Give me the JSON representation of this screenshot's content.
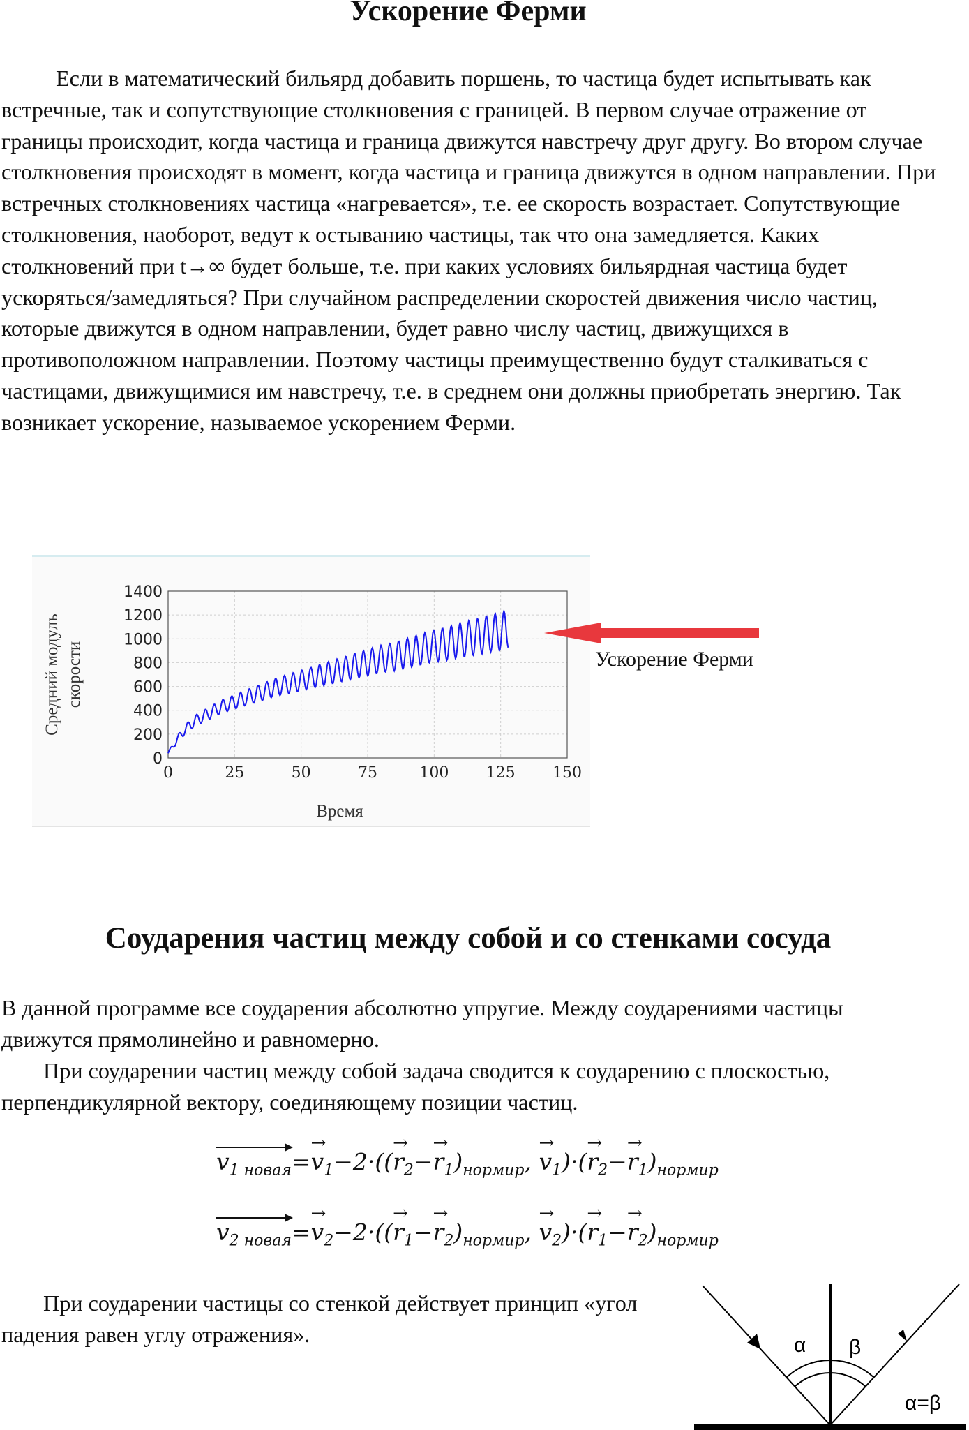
{
  "heading_fermi": "Ускорение Ферми",
  "paragraph_fermi": "Если в математический бильярд добавить поршень, то частица будет испытывать как встречные, так и сопутствующие столкновения с границей. В первом случае отражение от границы происходит, когда частица и граница движутся навстречу друг другу. Во втором случае столкновения происходят в момент, когда частица и граница движутся в одном направлении. При встречных столкновениях частица «нагревается», т.е. ее скорость возрастает. Сопутствующие столкновения, наоборот, ведут к остыванию частицы, так что она замедляется. Каких столкновений при t→∞ будет больше, т.е. при каких условиях бильярдная частица будет ускоряться/замедляться? При случайном распределении скоростей движения число частиц, которые движутся в одном направлении, будет равно числу частиц, движущихся в противоположном направлении. Поэтому частицы преимущественно будут сталкиваться с частицами, движущимися им навстречу, т.е. в среднем они должны приобретать энергию. Так возникает ускорение, называемое ускорением Ферми.",
  "chart_data": {
    "type": "line",
    "xlabel": "Время",
    "ylabel_lines": [
      "Средний модуль",
      "скорости"
    ],
    "xlim": [
      0,
      150
    ],
    "ylim": [
      0,
      1400
    ],
    "x_ticks": [
      "0",
      "25",
      "50",
      "75",
      "100",
      "125",
      "150"
    ],
    "y_ticks": [
      "0",
      "200",
      "400",
      "600",
      "800",
      "1000",
      "1200",
      "1400"
    ],
    "grid": true,
    "series": [
      {
        "color": "#1a1aee",
        "x": [
          0,
          3,
          6,
          10,
          15,
          20,
          25,
          30,
          35,
          40,
          45,
          50,
          55,
          60,
          65,
          70,
          75,
          80,
          85,
          90,
          95,
          100,
          105,
          110,
          115,
          120,
          125,
          128
        ],
        "y": [
          40,
          140,
          230,
          310,
          370,
          430,
          470,
          510,
          550,
          590,
          620,
          650,
          680,
          710,
          740,
          770,
          800,
          830,
          850,
          880,
          910,
          940,
          960,
          990,
          1010,
          1040,
          1060,
          1090
        ],
        "oscillation_amplitude": [
          10,
          30,
          40,
          45,
          50,
          55,
          60,
          65,
          70,
          75,
          80,
          85,
          90,
          95,
          100,
          105,
          110,
          115,
          120,
          125,
          130,
          135,
          140,
          145,
          150,
          155,
          160,
          160
        ]
      }
    ]
  },
  "annotation_label": "Ускорение Ферми",
  "annotation_arrow_color": "#e8383d",
  "heading_collisions": "Соударения частиц между собой и со стенками сосуда",
  "paragraph_elastic": "В данной программе все соударения абсолютно упругие. Между соударениями частицы движутся прямолинейно и равномерно.",
  "paragraph_particles": "При соударении частиц между собой задача сводится к соударению с плоскостью, перпендикулярной вектору, соединяющему позиции частиц.",
  "formula_sub_new": "новая",
  "formula_sub_norm": "нормир",
  "paragraph_wall": "При соударении частицы со стенкой действует принцип «угол падения равен углу отражения».",
  "angle_alpha": "α",
  "angle_beta": "β",
  "angle_equal": "α=β"
}
